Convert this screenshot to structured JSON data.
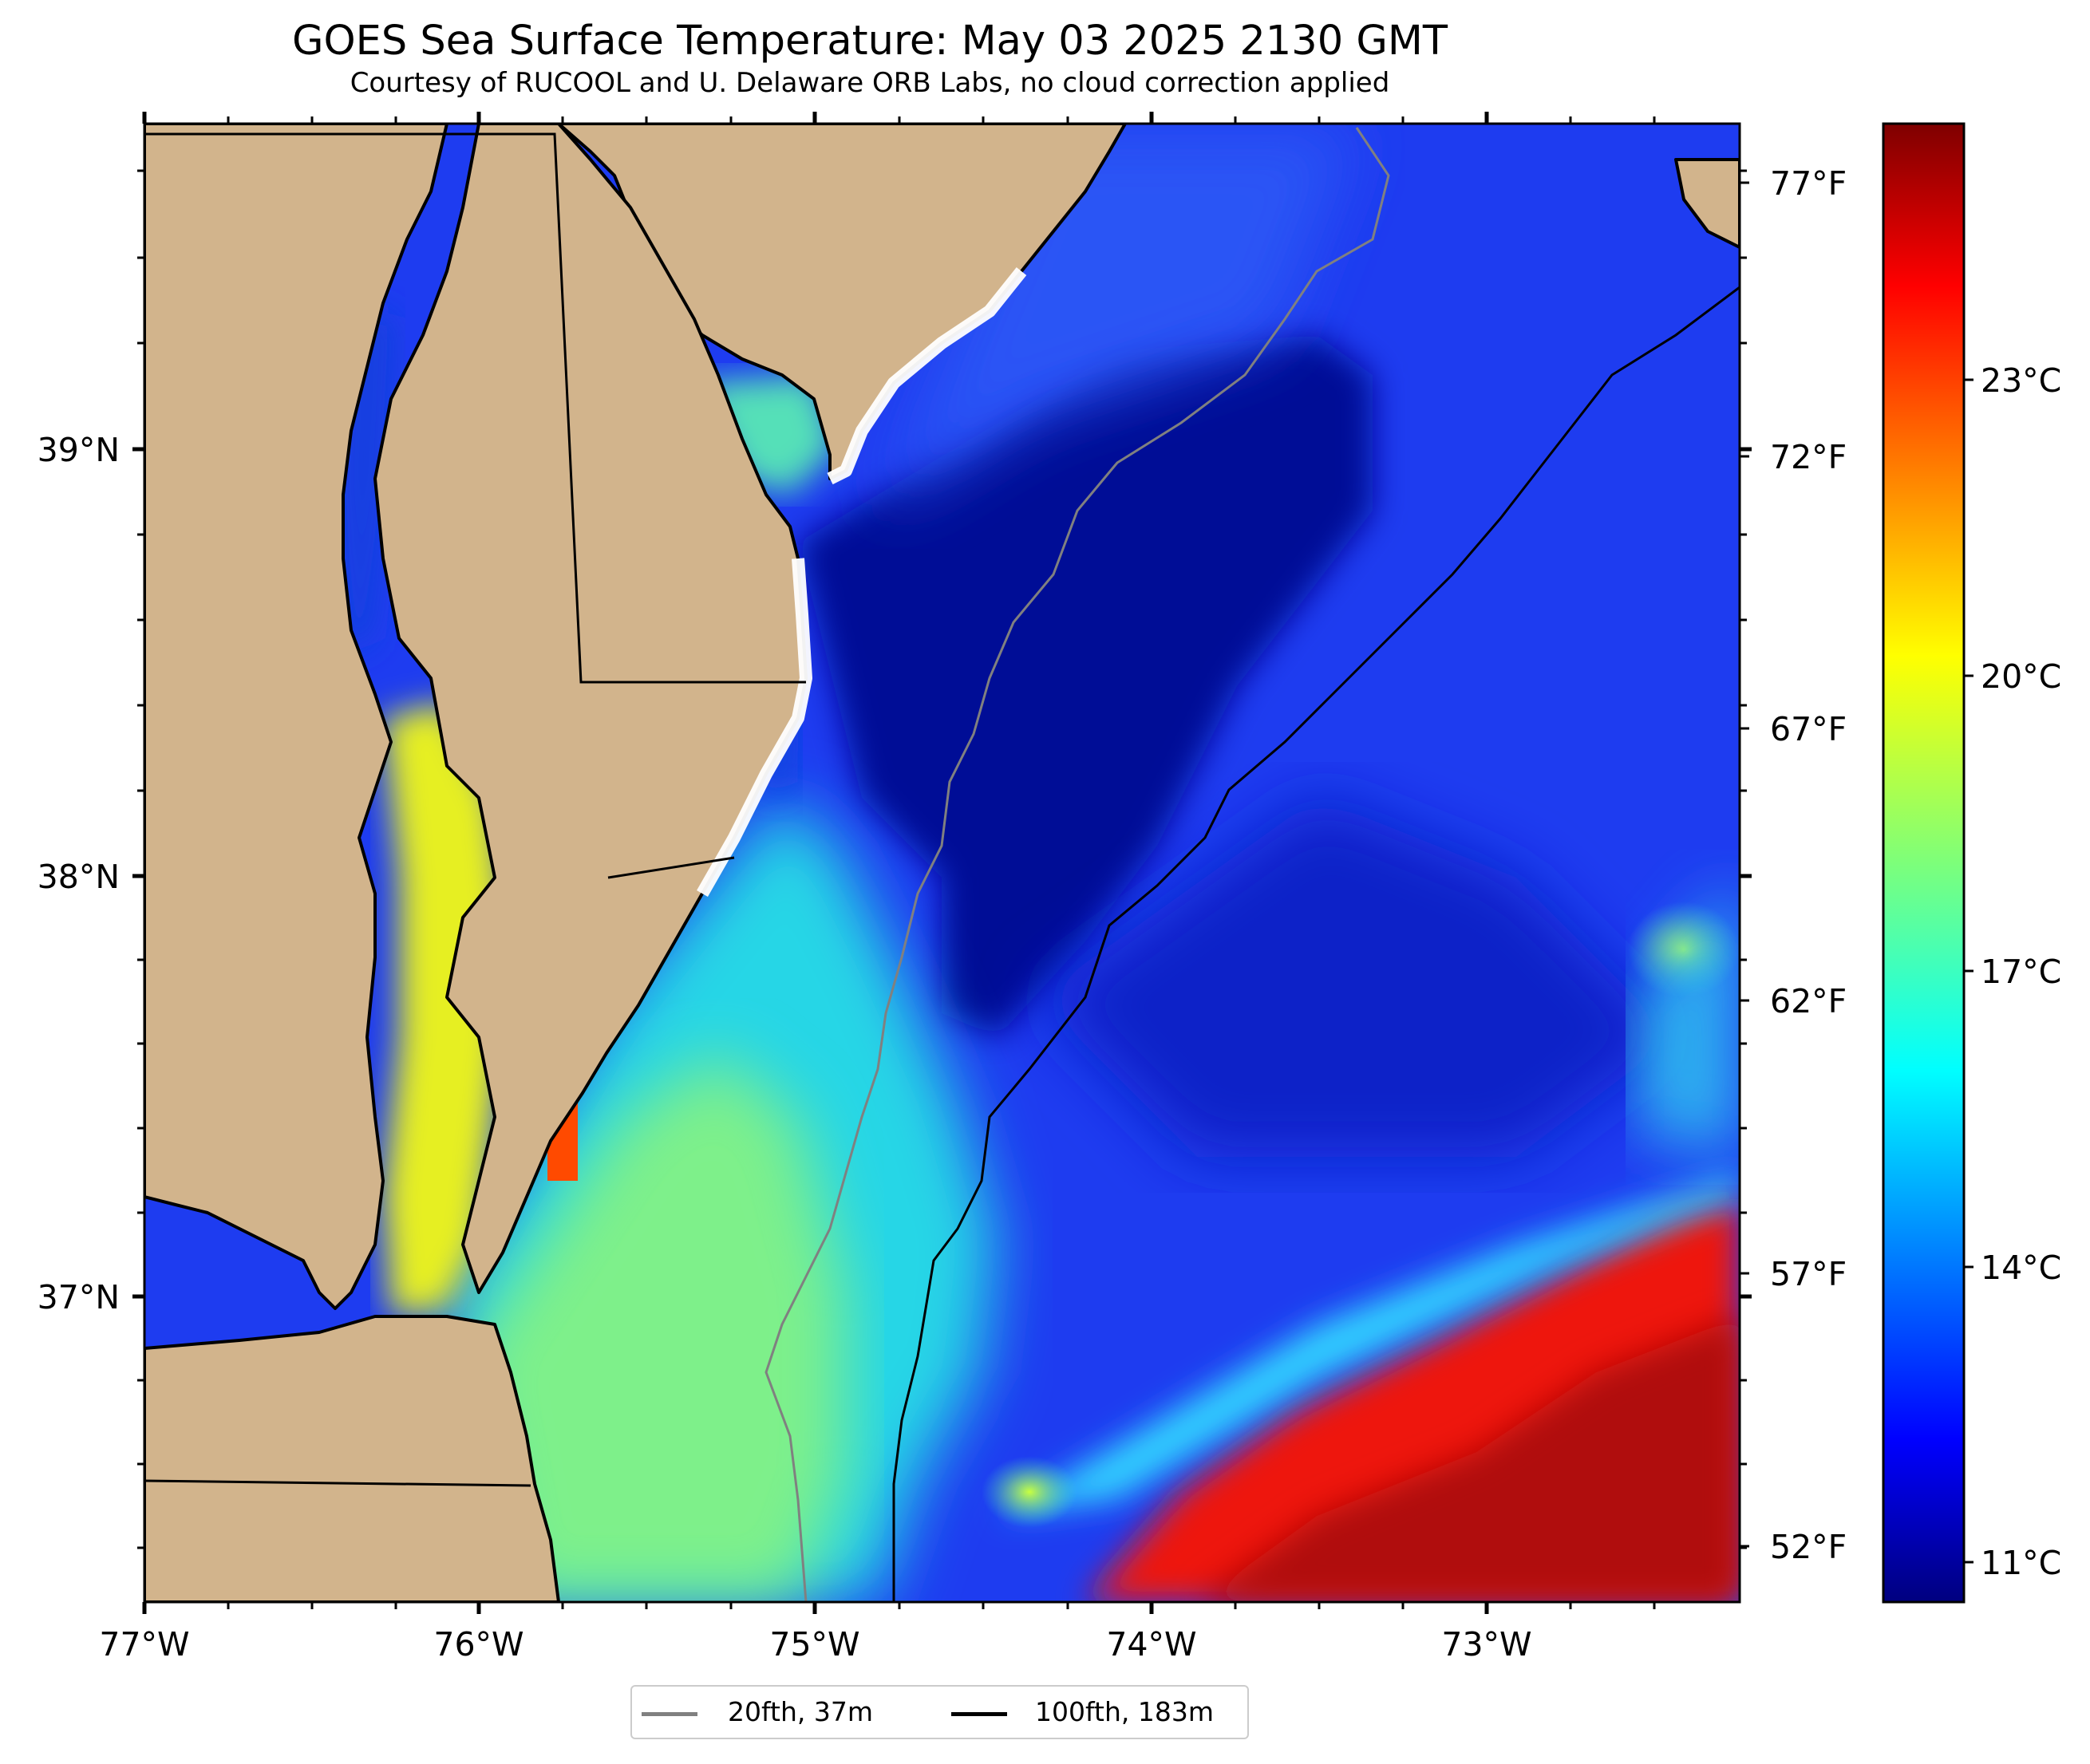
{
  "title": "GOES Sea Surface Temperature: May 03 2025 2130 GMT",
  "subtitle": "Courtesy of RUCOOL and U. Delaware ORB Labs, no cloud correction applied",
  "axes": {
    "lon_labels": [
      "77°W",
      "76°W",
      "75°W",
      "74°W",
      "73°W"
    ],
    "lat_labels": [
      "39°N",
      "38°N",
      "37°N"
    ]
  },
  "fahrenheit_labels": [
    "77°F",
    "72°F",
    "67°F",
    "62°F",
    "57°F",
    "52°F"
  ],
  "colorbar": {
    "labels": [
      "23°C",
      "20°C",
      "17°C",
      "14°C",
      "11°C"
    ],
    "colormap": "jet"
  },
  "legend": {
    "items": [
      {
        "label": "20fth, 37m",
        "color": "#808080"
      },
      {
        "label": "100fth, 183m",
        "color": "#000000"
      }
    ]
  },
  "colors": {
    "land": "#d2b48c",
    "coast_fill": "#ffffff",
    "isobath_20fth": "#808080",
    "isobath_100fth": "#000000"
  }
}
